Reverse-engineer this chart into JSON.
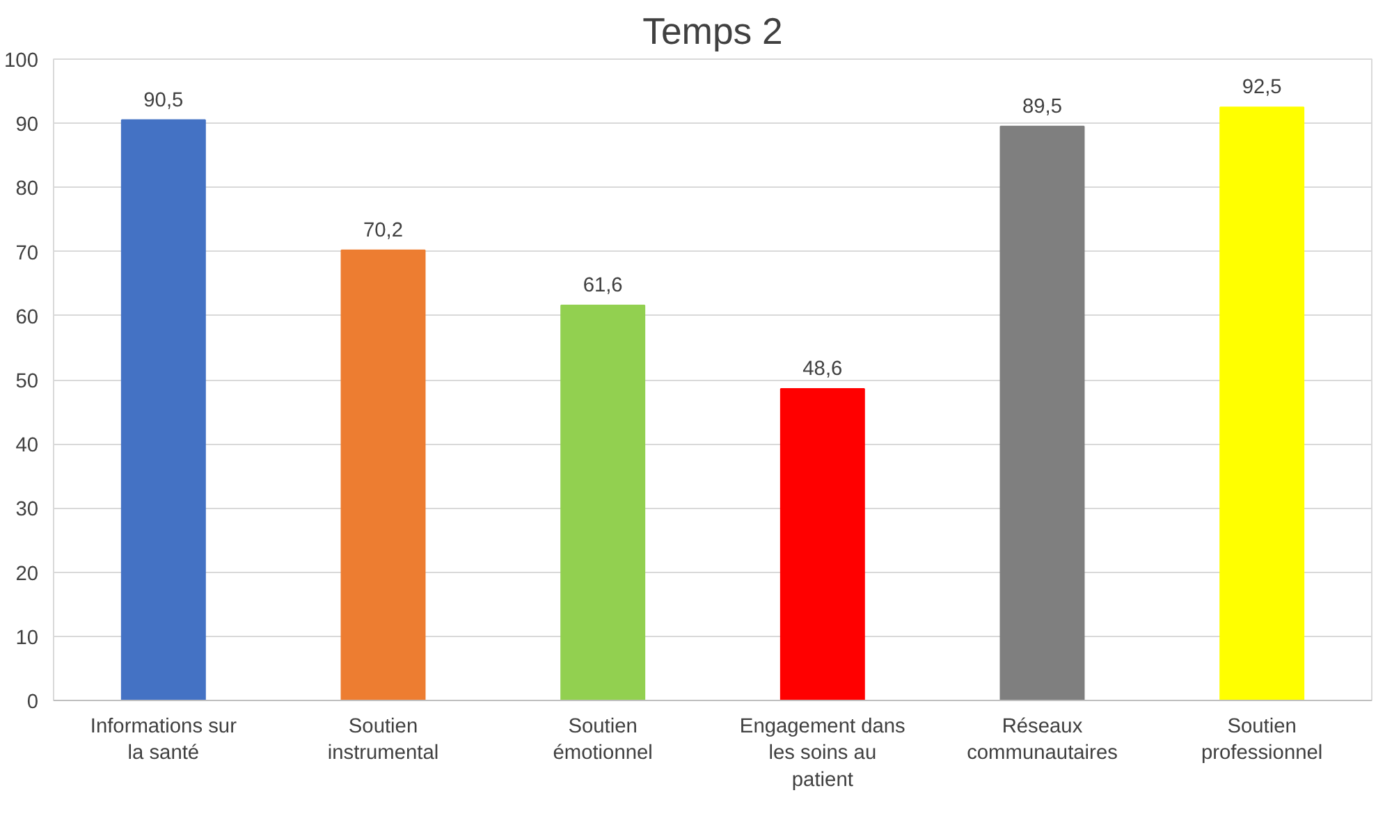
{
  "chart_data": {
    "type": "bar",
    "title": "Temps 2",
    "categories": [
      "Informations sur la santé",
      "Soutien instrumental",
      "Soutien émotionnel",
      "Engagement dans les soins au patient",
      "Réseaux communautaires",
      "Soutien professionnel"
    ],
    "values": [
      90.5,
      70.2,
      61.6,
      48.6,
      89.5,
      92.5
    ],
    "colors": [
      "#4472c4",
      "#ed7d31",
      "#92d050",
      "#ff0000",
      "#7f7f7f",
      "#ffff00"
    ],
    "ylim": [
      0,
      100
    ],
    "yticks": [
      0,
      10,
      20,
      30,
      40,
      50,
      60,
      70,
      80,
      90,
      100
    ],
    "value_labels": [
      "90,5",
      "70,2",
      "61,6",
      "48,6",
      "89,5",
      "92,5"
    ],
    "grid": "y"
  }
}
